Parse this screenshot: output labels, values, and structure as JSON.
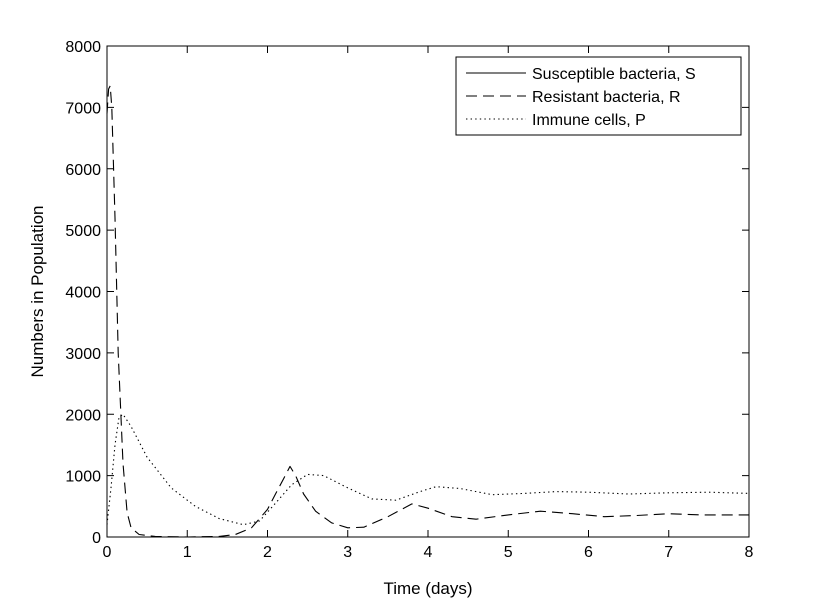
{
  "chart_data": {
    "type": "line",
    "title": "",
    "xlabel": "Time (days)",
    "ylabel": "Numbers in Population",
    "xlim": [
      0,
      8
    ],
    "ylim": [
      0,
      8000
    ],
    "xticks": [
      "0",
      "1",
      "2",
      "3",
      "4",
      "5",
      "6",
      "7",
      "8"
    ],
    "yticks": [
      "0",
      "1000",
      "2000",
      "3000",
      "4000",
      "5000",
      "6000",
      "7000",
      "8000"
    ],
    "grid": false,
    "legend_position": "top-right",
    "series": [
      {
        "name": "Susceptible bacteria, S",
        "style": "solid",
        "x": [
          0,
          8
        ],
        "y": [
          0,
          0
        ]
      },
      {
        "name": "Resistant bacteria, R",
        "style": "dashed",
        "x": [
          0,
          0.02,
          0.04,
          0.06,
          0.1,
          0.14,
          0.2,
          0.25,
          0.3,
          0.4,
          0.6,
          1.0,
          1.4,
          1.6,
          1.8,
          2.0,
          2.1,
          2.2,
          2.28,
          2.35,
          2.45,
          2.6,
          2.8,
          3.0,
          3.2,
          3.5,
          3.8,
          4.0,
          4.3,
          4.6,
          5.0,
          5.4,
          5.8,
          6.2,
          6.6,
          7.0,
          7.4,
          8.0
        ],
        "y": [
          6900,
          7300,
          7350,
          7000,
          5200,
          3000,
          1200,
          400,
          150,
          40,
          10,
          0,
          10,
          40,
          150,
          450,
          700,
          950,
          1150,
          1000,
          700,
          420,
          230,
          150,
          160,
          330,
          540,
          470,
          330,
          290,
          360,
          420,
          380,
          330,
          350,
          380,
          360,
          360
        ]
      },
      {
        "name": "Immune cells, P",
        "style": "dotted",
        "x": [
          0,
          0.05,
          0.1,
          0.15,
          0.2,
          0.3,
          0.5,
          0.8,
          1.1,
          1.4,
          1.7,
          1.9,
          2.1,
          2.3,
          2.5,
          2.7,
          3.0,
          3.3,
          3.6,
          3.9,
          4.1,
          4.4,
          4.8,
          5.2,
          5.6,
          6.0,
          6.5,
          7.0,
          7.5,
          8.0
        ],
        "y": [
          200,
          800,
          1500,
          1950,
          2000,
          1800,
          1300,
          800,
          500,
          300,
          200,
          260,
          550,
          850,
          1020,
          1000,
          800,
          620,
          600,
          740,
          820,
          790,
          690,
          710,
          740,
          730,
          700,
          720,
          730,
          710
        ]
      }
    ]
  }
}
